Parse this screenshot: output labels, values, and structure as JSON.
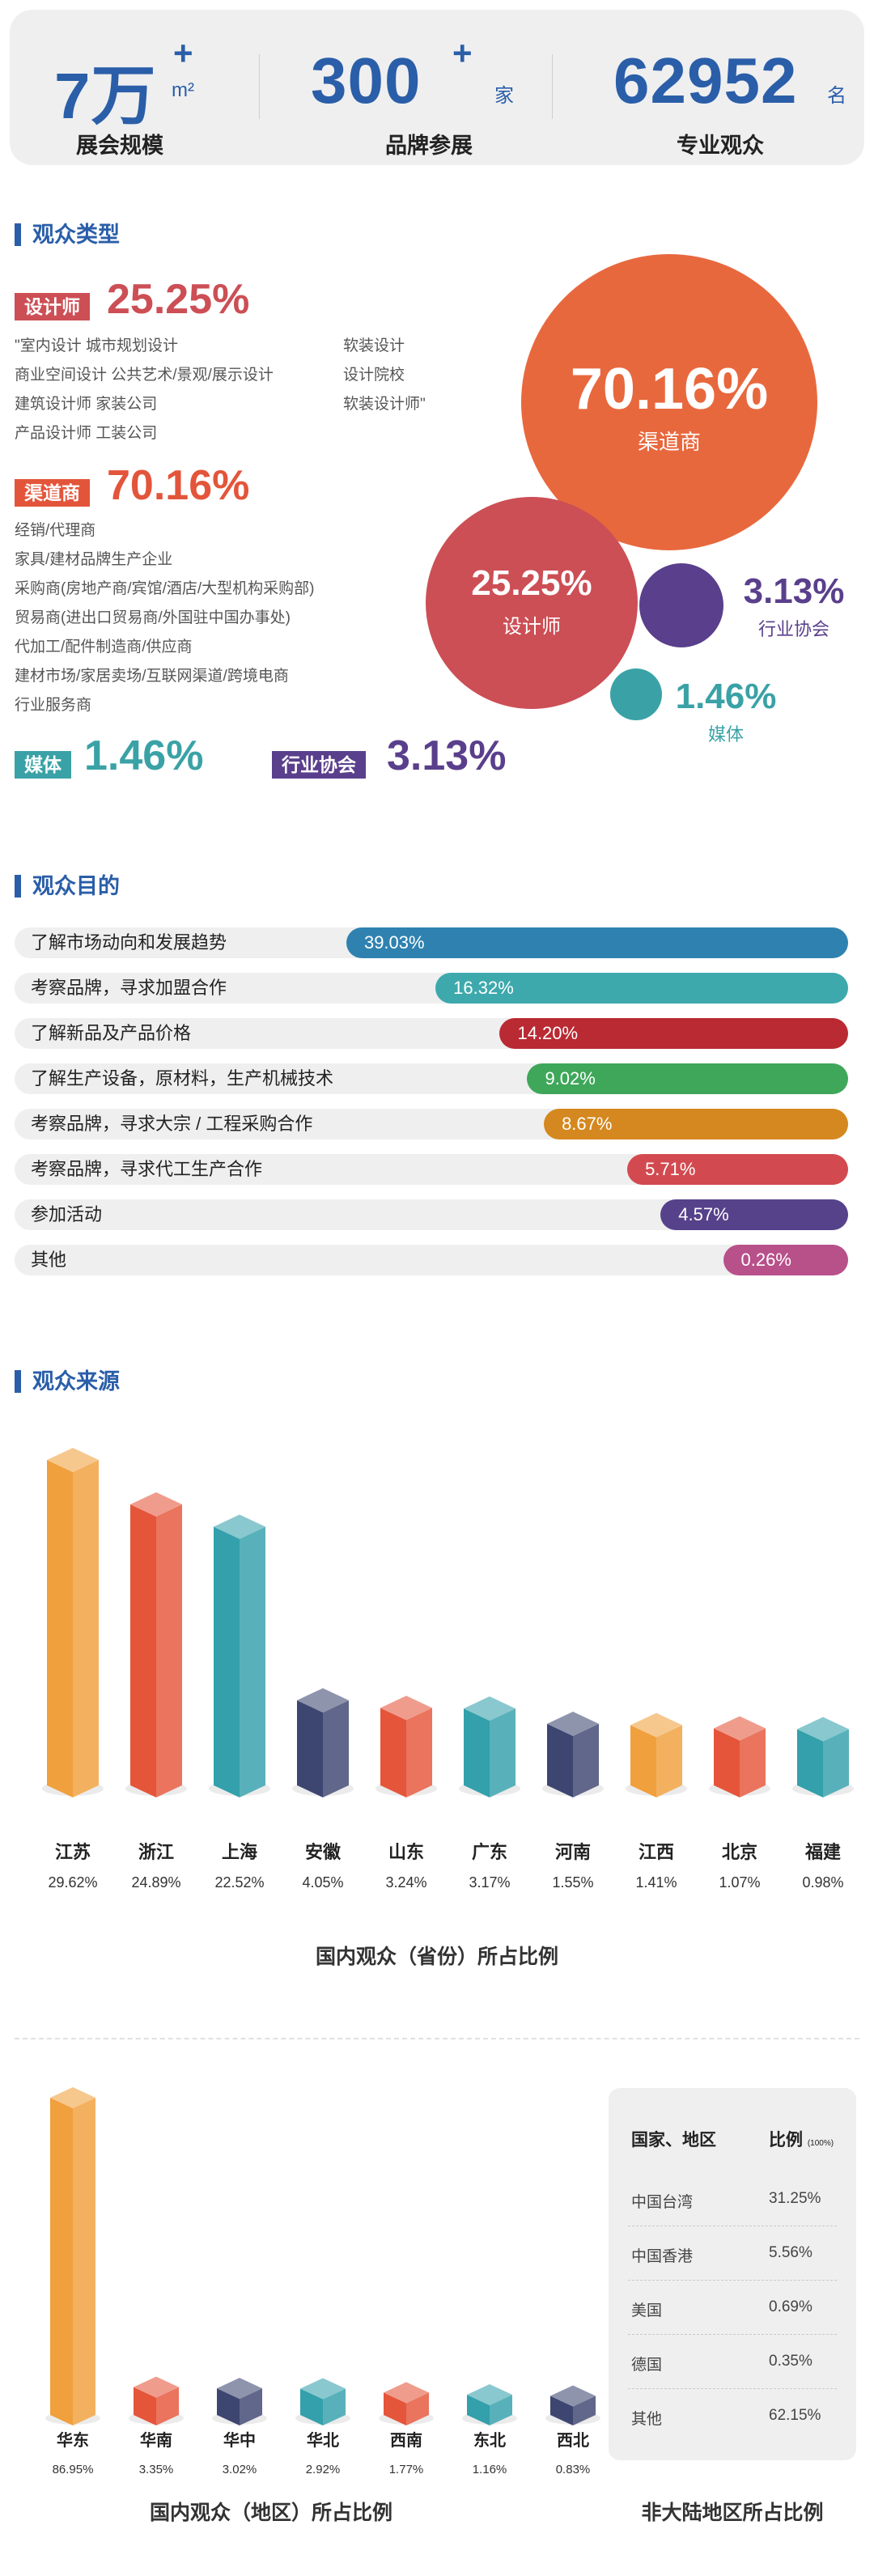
{
  "stats": [
    {
      "value": "7万",
      "sup": "+",
      "unit": "m²",
      "label": "展会规模"
    },
    {
      "value": "300",
      "sup": "+",
      "unit": "家",
      "label": "品牌参展"
    },
    {
      "value": "62952",
      "sup": "",
      "unit": "名",
      "label": "专业观众"
    }
  ],
  "audience_type": {
    "title": "观众类型",
    "designer": {
      "tag": "设计师",
      "pct": "25.25%",
      "lines": [
        "\"室内设计 城市规划设计",
        "商业空间设计 公共艺术/景观/展示设计",
        "建筑设计师 家装公司",
        "产品设计师 工装公司"
      ],
      "lines_right": [
        "软装设计",
        "设计院校",
        "软装设计师\""
      ]
    },
    "channel": {
      "tag": "渠道商",
      "pct": "70.16%",
      "lines": [
        "经销/代理商",
        "家具/建材品牌生产企业",
        "采购商(房地产商/宾馆/酒店/大型机构采购部)",
        "贸易商(进出口贸易商/外国驻中国办事处)",
        "代加工/配件制造商/供应商",
        "建材市场/家居卖场/互联网渠道/跨境电商",
        "行业服务商"
      ]
    },
    "media": {
      "tag": "媒体",
      "pct": "1.46%"
    },
    "association": {
      "tag": "行业协会",
      "pct": "3.13%"
    }
  },
  "bubbles": [
    {
      "pct": "70.16%",
      "label": "渠道商",
      "color": "#e8683e"
    },
    {
      "pct": "25.25%",
      "label": "设计师",
      "color": "#cc4f55"
    },
    {
      "pct": "3.13%",
      "label": "行业协会",
      "color": "#5a3f8c"
    },
    {
      "pct": "1.46%",
      "label": "媒体",
      "color": "#3aa2a6"
    }
  ],
  "purpose": {
    "title": "观众目的",
    "items": [
      {
        "label": "了解市场动向和发展趋势",
        "pct": "39.03%",
        "fill": 0.602,
        "color": "#2f82b0"
      },
      {
        "label": "考察品牌，寻求加盟合作",
        "pct": "16.32%",
        "fill": 0.495,
        "color": "#3ea9ac"
      },
      {
        "label": "了解新品及产品价格",
        "pct": "14.20%",
        "fill": 0.418,
        "color": "#b92a33"
      },
      {
        "label": "了解生产设备，原材料，生产机械技术",
        "pct": "9.02%",
        "fill": 0.385,
        "color": "#3fa75a"
      },
      {
        "label": "考察品牌，寻求大宗 / 工程采购合作",
        "pct": "8.67%",
        "fill": 0.365,
        "color": "#d4881f"
      },
      {
        "label": "考察品牌，寻求代工生产合作",
        "pct": "5.71%",
        "fill": 0.265,
        "color": "#d24a4f"
      },
      {
        "label": "参加活动",
        "pct": "4.57%",
        "fill": 0.225,
        "color": "#56428b"
      },
      {
        "label": "其他",
        "pct": "0.26%",
        "fill": 0.15,
        "color": "#b8508a"
      }
    ]
  },
  "source_title": "观众来源",
  "chart_data": [
    {
      "type": "bar",
      "title": "国内观众（省份）所占比例",
      "categories": [
        "江苏",
        "浙江",
        "上海",
        "安徽",
        "山东",
        "广东",
        "河南",
        "江西",
        "北京",
        "福建"
      ],
      "values": [
        29.62,
        24.89,
        22.52,
        4.05,
        3.24,
        3.17,
        1.55,
        1.41,
        1.07,
        0.98
      ],
      "labels": [
        "29.62%",
        "24.89%",
        "22.52%",
        "4.05%",
        "3.24%",
        "3.17%",
        "1.55%",
        "1.41%",
        "1.07%",
        "0.98%"
      ],
      "colors": [
        "#f0a03c",
        "#e5553a",
        "#33a0ab",
        "#3d4670",
        "#e5553a",
        "#33a0ab",
        "#3d4670",
        "#f0a03c",
        "#e5553a",
        "#33a0ab"
      ]
    },
    {
      "type": "bar",
      "title": "国内观众（地区）所占比例",
      "categories": [
        "华东",
        "华南",
        "华中",
        "华北",
        "西南",
        "东北",
        "西北"
      ],
      "values": [
        86.95,
        3.35,
        3.02,
        2.92,
        1.77,
        1.16,
        0.83
      ],
      "labels": [
        "86.95%",
        "3.35%",
        "3.02%",
        "2.92%",
        "1.77%",
        "1.16%",
        "0.83%"
      ],
      "colors": [
        "#f0a03c",
        "#e5553a",
        "#3d4670",
        "#33a0ab",
        "#e5553a",
        "#33a0ab",
        "#3d4670"
      ]
    },
    {
      "type": "table",
      "title": "非大陆地区所占比例",
      "columns": [
        "国家、地区",
        "比例"
      ],
      "unit": "(100%)",
      "rows": [
        [
          "中国台湾",
          "31.25%"
        ],
        [
          "中国香港",
          "5.56%"
        ],
        [
          "美国",
          "0.69%"
        ],
        [
          "德国",
          "0.35%"
        ],
        [
          "其他",
          "62.15%"
        ]
      ]
    }
  ]
}
